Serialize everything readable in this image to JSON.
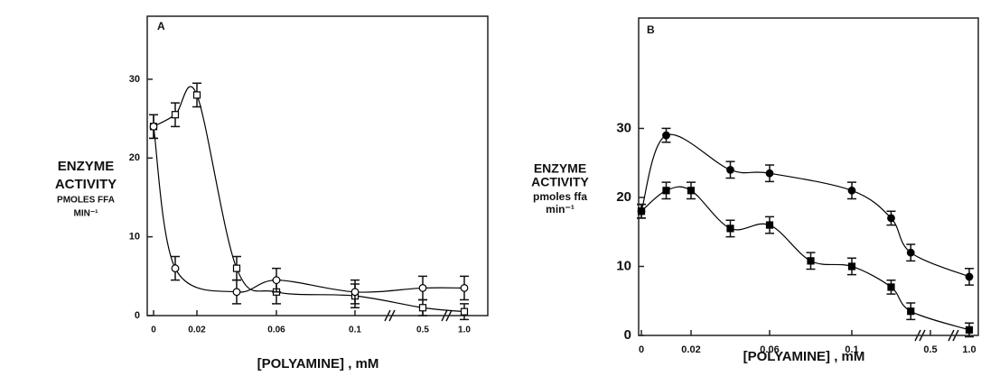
{
  "chart_data": [
    {
      "type": "line",
      "title": "A",
      "ylabel": [
        "ENZYME",
        "ACTIVITY",
        "PMOLES FFA",
        "MIN⁻¹"
      ],
      "xlabel": "[POLYAMINE] , mM",
      "ylim": [
        0,
        38
      ],
      "yticks": [
        0,
        10,
        20,
        30
      ],
      "xticks": [
        0,
        0.02,
        0.06,
        {
          "value": 0.1,
          "label": "0.1"
        },
        0.5,
        {
          "value": 1.0,
          "label": "1.0"
        }
      ],
      "series": [
        {
          "marker": "square",
          "filled": false,
          "color": "#000",
          "x": [
            0,
            0.01,
            0.02,
            0.04,
            0.06,
            0.1,
            0.5,
            1.0
          ],
          "values": [
            24,
            25.5,
            28,
            6,
            3,
            2.5,
            1,
            0.5
          ],
          "errors": [
            1.5,
            1.5,
            1.5,
            1.5,
            1.5,
            1.5,
            1,
            1
          ]
        },
        {
          "marker": "circle",
          "filled": false,
          "color": "#000",
          "x": [
            0,
            0.01,
            0.04,
            0.06,
            0.1,
            0.5,
            1.0
          ],
          "values": [
            24,
            6,
            3,
            4.5,
            3,
            3.5,
            3.5
          ],
          "errors": [
            1.5,
            1.5,
            1.5,
            1.5,
            1.5,
            1.5,
            1.5
          ]
        }
      ]
    },
    {
      "type": "line",
      "title": "B",
      "ylabel": [
        "ENZYME",
        "ACTIVITY",
        "pmoles ffa",
        "min⁻¹"
      ],
      "xlabel": "[POLYAMINE] , mM",
      "ylim": [
        0,
        46
      ],
      "yticks": [
        0,
        10,
        20,
        30
      ],
      "xticks": [
        0,
        0.02,
        0.06,
        {
          "value": 0.1,
          "label": "0.1"
        },
        0.5,
        {
          "value": 1.0,
          "label": "1.0"
        }
      ],
      "series": [
        {
          "marker": "circle",
          "filled": true,
          "color": "#000",
          "x": [
            0,
            0.01,
            0.04,
            0.06,
            0.1,
            0.3,
            0.4,
            1.0
          ],
          "values": [
            18,
            29,
            24,
            23.5,
            21,
            17,
            12,
            8.5
          ],
          "errors": [
            1,
            1,
            1.2,
            1.2,
            1.2,
            1,
            1.2,
            1.2
          ]
        },
        {
          "marker": "square",
          "filled": true,
          "color": "#000",
          "x": [
            0,
            0.01,
            0.02,
            0.04,
            0.06,
            0.08,
            0.1,
            0.3,
            0.4,
            1.0
          ],
          "values": [
            18,
            21,
            21,
            15.5,
            16,
            10.8,
            10,
            7,
            3.5,
            0.8
          ],
          "errors": [
            1,
            1.2,
            1.2,
            1.2,
            1.2,
            1.2,
            1.2,
            1,
            1.2,
            1
          ]
        }
      ]
    }
  ]
}
